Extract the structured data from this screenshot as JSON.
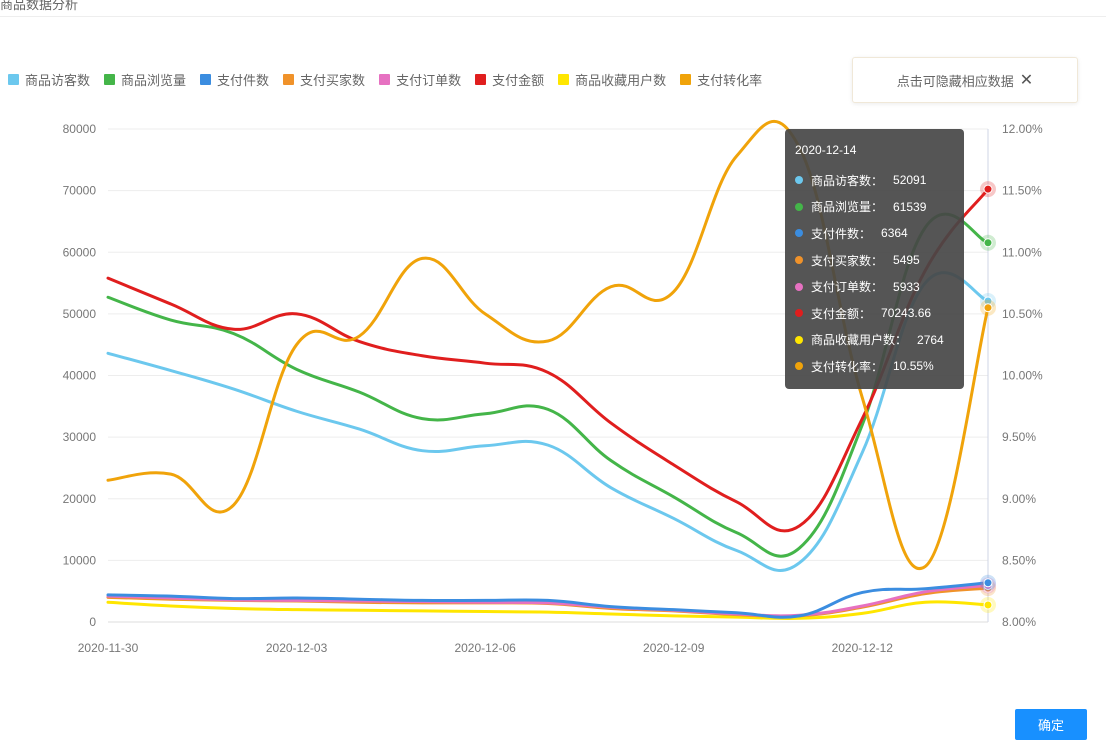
{
  "page": {
    "title": "商品数据分析",
    "hint_text": "点击可隐藏相应数据",
    "confirm_label": "确定"
  },
  "colors": {
    "商品访客数": "#6cc8ee",
    "商品浏览量": "#44b549",
    "支付件数": "#3b8de0",
    "支付买家数": "#f0922a",
    "支付订单数": "#e671c1",
    "支付金额": "#e01e1e",
    "商品收藏用户数": "#ffe600",
    "支付转化率": "#f0a30a"
  },
  "chart_data": {
    "type": "line",
    "x": [
      "2020-11-30",
      "2020-12-01",
      "2020-12-02",
      "2020-12-03",
      "2020-12-04",
      "2020-12-05",
      "2020-12-06",
      "2020-12-07",
      "2020-12-08",
      "2020-12-09",
      "2020-12-10",
      "2020-12-11",
      "2020-12-12",
      "2020-12-13",
      "2020-12-14"
    ],
    "x_tick_labels": [
      "2020-11-30",
      "2020-12-03",
      "2020-12-06",
      "2020-12-09",
      "2020-12-12"
    ],
    "y_left": {
      "ylim": [
        0,
        80000
      ],
      "ticks": [
        "0",
        "10000",
        "20000",
        "30000",
        "40000",
        "50000",
        "60000",
        "70000",
        "80000"
      ]
    },
    "y_right": {
      "ylim": [
        8.0,
        12.0
      ],
      "ticks": [
        "8.00%",
        "8.50%",
        "9.00%",
        "9.50%",
        "10.00%",
        "10.50%",
        "11.00%",
        "11.50%",
        "12.00%"
      ]
    },
    "series": [
      {
        "name": "商品访客数",
        "axis": "left",
        "values": [
          43600,
          40800,
          37800,
          34200,
          31300,
          27800,
          28600,
          28700,
          21800,
          16800,
          11600,
          9600,
          27500,
          55000,
          52091
        ]
      },
      {
        "name": "商品浏览量",
        "axis": "left",
        "values": [
          52700,
          49000,
          46800,
          41000,
          37300,
          33000,
          33800,
          34500,
          26200,
          20300,
          14500,
          12000,
          32000,
          64000,
          61539
        ]
      },
      {
        "name": "支付件数",
        "axis": "left",
        "values": [
          4400,
          4200,
          3800,
          3900,
          3700,
          3500,
          3500,
          3500,
          2500,
          2000,
          1500,
          1000,
          4800,
          5400,
          6364
        ]
      },
      {
        "name": "支付买家数",
        "axis": "left",
        "values": [
          4000,
          3700,
          3500,
          3400,
          3200,
          3100,
          3100,
          3000,
          2200,
          1800,
          1200,
          1000,
          2400,
          4600,
          5495
        ]
      },
      {
        "name": "支付订单数",
        "axis": "left",
        "values": [
          4200,
          3900,
          3600,
          3500,
          3400,
          3300,
          3200,
          3100,
          2400,
          1900,
          1300,
          1100,
          2600,
          4900,
          5933
        ]
      },
      {
        "name": "支付金额",
        "axis": "left",
        "values": [
          55800,
          51600,
          47500,
          50000,
          45500,
          43200,
          42000,
          40500,
          32300,
          25500,
          19500,
          15600,
          33000,
          57000,
          70243.66
        ]
      },
      {
        "name": "商品收藏用户数",
        "axis": "left",
        "values": [
          3200,
          2600,
          2200,
          2000,
          1900,
          1800,
          1700,
          1600,
          1300,
          1000,
          800,
          600,
          1400,
          3200,
          2764
        ]
      },
      {
        "name": "支付转化率",
        "axis": "right",
        "values": [
          9.15,
          9.2,
          8.95,
          10.25,
          10.32,
          10.95,
          10.5,
          10.28,
          10.72,
          10.68,
          11.78,
          11.85,
          9.82,
          8.45,
          10.55
        ]
      }
    ],
    "tooltip": {
      "date": "2020-12-14",
      "rows": [
        {
          "name": "商品访客数",
          "value": "52091"
        },
        {
          "name": "商品浏览量",
          "value": "61539"
        },
        {
          "name": "支付件数",
          "value": "6364"
        },
        {
          "name": "支付买家数",
          "value": "5495"
        },
        {
          "name": "支付订单数",
          "value": "5933"
        },
        {
          "name": "支付金额",
          "value": "70243.66"
        },
        {
          "name": "商品收藏用户数",
          "value": "2764"
        },
        {
          "name": "支付转化率",
          "value": "10.55%"
        }
      ]
    }
  }
}
